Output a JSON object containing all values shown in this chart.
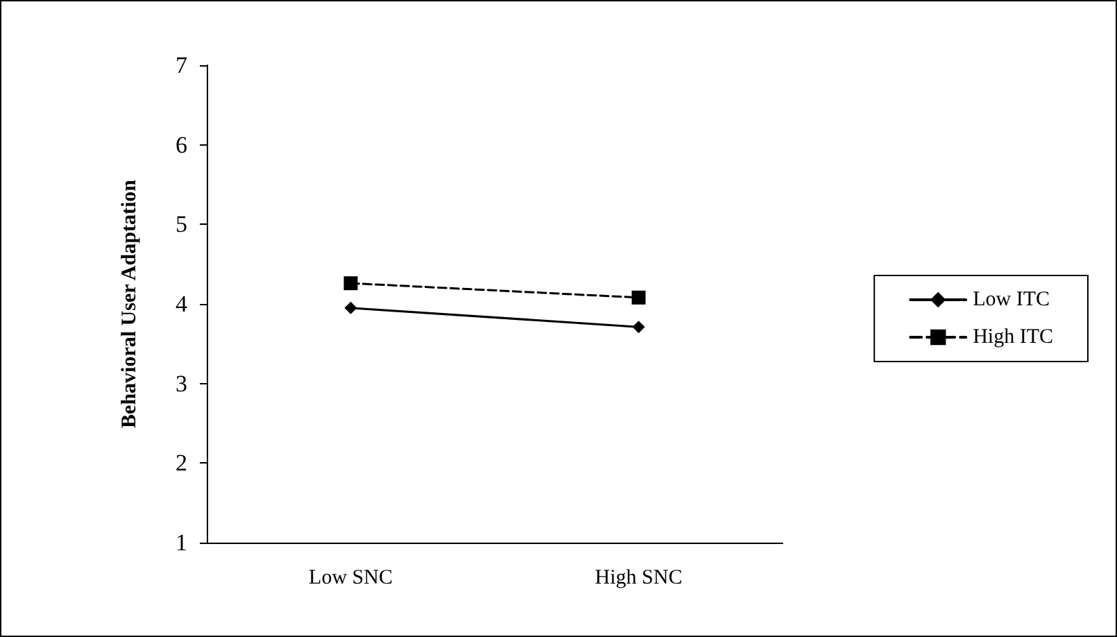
{
  "chart_data": {
    "type": "line",
    "ylabel": "Behavioral User Adaptation",
    "categories": [
      "Low SNC",
      "High SNC"
    ],
    "series": [
      {
        "name": "Low ITC",
        "color": "#000000",
        "values": [
          3.95,
          3.71
        ],
        "marker": "diamond",
        "line_style": "solid"
      },
      {
        "name": "High ITC",
        "color": "#000000",
        "values": [
          4.26,
          4.08
        ],
        "marker": "square",
        "line_style": "dashed"
      }
    ],
    "ylim": [
      1,
      7
    ],
    "yticks": [
      1,
      2,
      3,
      4,
      5,
      6,
      7
    ],
    "grid": false,
    "legend": "right"
  }
}
